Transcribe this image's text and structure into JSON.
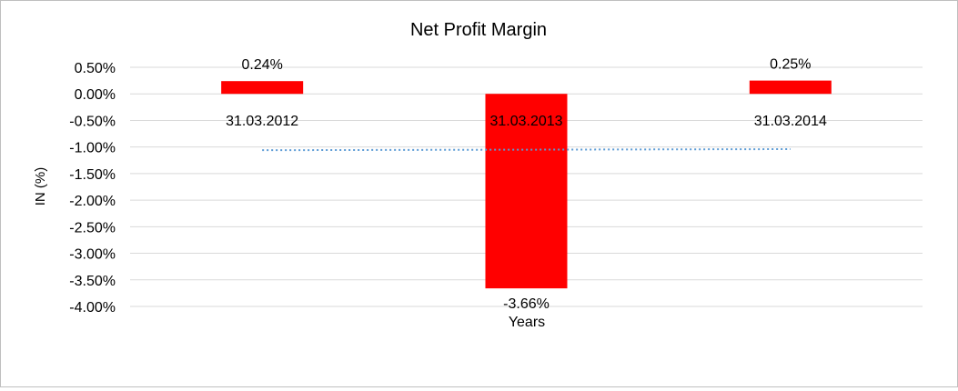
{
  "chart_data": {
    "type": "bar",
    "title": "Net Profit Margin",
    "xlabel": "Years",
    "ylabel": "IN (%)",
    "categories": [
      "31.03.2012",
      "31.03.2013",
      "31.03.2014"
    ],
    "values": [
      0.24,
      -3.66,
      0.25
    ],
    "data_labels": [
      "0.24%",
      "-3.66%",
      "0.25%"
    ],
    "ylim": [
      -4.0,
      0.5
    ],
    "yticks": [
      0.5,
      0.0,
      -0.5,
      -1.0,
      -1.5,
      -2.0,
      -2.5,
      -3.0,
      -3.5,
      -4.0
    ],
    "ytick_labels": [
      "0.50%",
      "0.00%",
      "-0.50%",
      "-1.00%",
      "-1.50%",
      "-2.00%",
      "-2.50%",
      "-3.00%",
      "-3.50%",
      "-4.00%"
    ],
    "trendline": {
      "style": "dotted",
      "start_value": -1.06,
      "end_value": -1.04
    },
    "grid": true,
    "legend": "none",
    "colors": {
      "bar": "#ff0000",
      "trendline": "#5b9bd5",
      "grid": "#d9d9d9"
    }
  }
}
